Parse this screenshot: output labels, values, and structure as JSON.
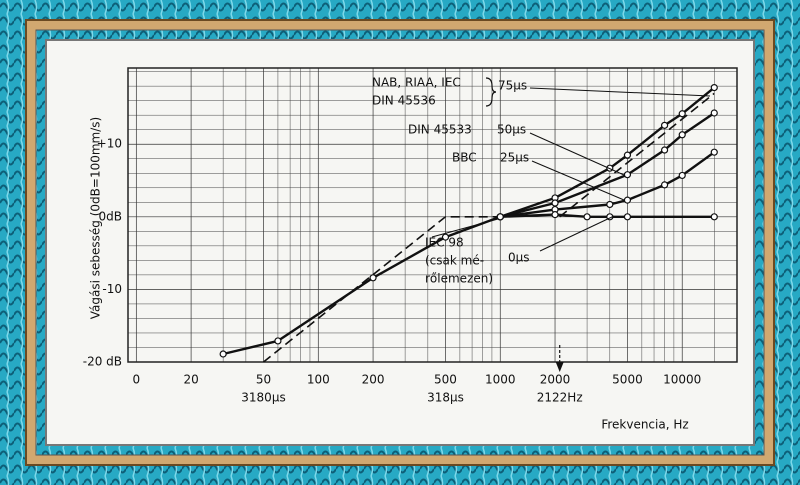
{
  "chart_data": {
    "type": "line",
    "xlog": true,
    "grid": true,
    "ylabel": "Vágási sebesség (0dB=100mm/s)",
    "xlabel": "Frekvencia, Hz",
    "xlim": [
      9,
      20000
    ],
    "ylim": [
      -20,
      20.5
    ],
    "xticks": [
      {
        "value": 10,
        "label": "0"
      },
      20,
      50,
      100,
      200,
      500,
      1000,
      2000,
      5000,
      10000
    ],
    "yticks": [
      {
        "value": -20,
        "label": "-20 dB"
      },
      {
        "value": -10,
        "label": "-10"
      },
      {
        "value": 0,
        "label": "0dB"
      },
      {
        "value": 10,
        "label": "+10"
      }
    ],
    "minor_xticks": [
      30,
      40,
      60,
      70,
      80,
      90,
      300,
      400,
      600,
      700,
      800,
      900,
      3000,
      4000,
      6000,
      7000,
      8000,
      9000,
      15000
    ],
    "minor_yticks": [
      -18,
      -16,
      -14,
      -12,
      -8,
      -6,
      -4,
      -2,
      2,
      4,
      6,
      8,
      12,
      14,
      16,
      18,
      20
    ],
    "series": [
      {
        "name": "75µs",
        "standard": [
          "NAB, RIAA, IEC",
          "DIN 45536"
        ],
        "color": "#111111",
        "x": [
          1000,
          2000,
          4000,
          5000,
          8000,
          10000,
          15000
        ],
        "values": [
          0,
          2.6,
          6.7,
          8.5,
          12.6,
          14.2,
          17.8
        ]
      },
      {
        "name": "50µs",
        "standard": [
          "DIN 45533"
        ],
        "color": "#111111",
        "x": [
          1000,
          2000,
          5000,
          8000,
          10000,
          15000
        ],
        "values": [
          0,
          1.9,
          5.8,
          9.2,
          11.3,
          14.3
        ]
      },
      {
        "name": "25µs",
        "standard": [
          "BBC"
        ],
        "color": "#111111",
        "x": [
          1000,
          2000,
          4000,
          5000,
          8000,
          10000,
          15000
        ],
        "values": [
          0,
          1.0,
          1.7,
          2.3,
          4.4,
          5.7,
          8.9
        ]
      },
      {
        "name": "0µs",
        "standard": [
          "IEC 98",
          "(csak mé-",
          "rőlemezen)"
        ],
        "color": "#111111",
        "x": [
          30,
          60,
          200,
          500,
          1000,
          2000,
          3000,
          4000,
          5000,
          15000
        ],
        "values": [
          -18.9,
          -17.1,
          -8.4,
          -2.8,
          0,
          0.3,
          0,
          0,
          0,
          0
        ]
      }
    ],
    "asymptotes": [
      {
        "x": [
          50,
          500,
          1000
        ],
        "values": [
          -20,
          0,
          0
        ]
      },
      {
        "x": [
          2122,
          15000
        ],
        "values": [
          0,
          17
        ]
      }
    ],
    "annotations": [
      {
        "text": "3180µs",
        "x": 50
      },
      {
        "text": "318µs",
        "x": 500
      },
      {
        "text": "2122Hz",
        "x": 2122,
        "arrow": true
      }
    ]
  }
}
